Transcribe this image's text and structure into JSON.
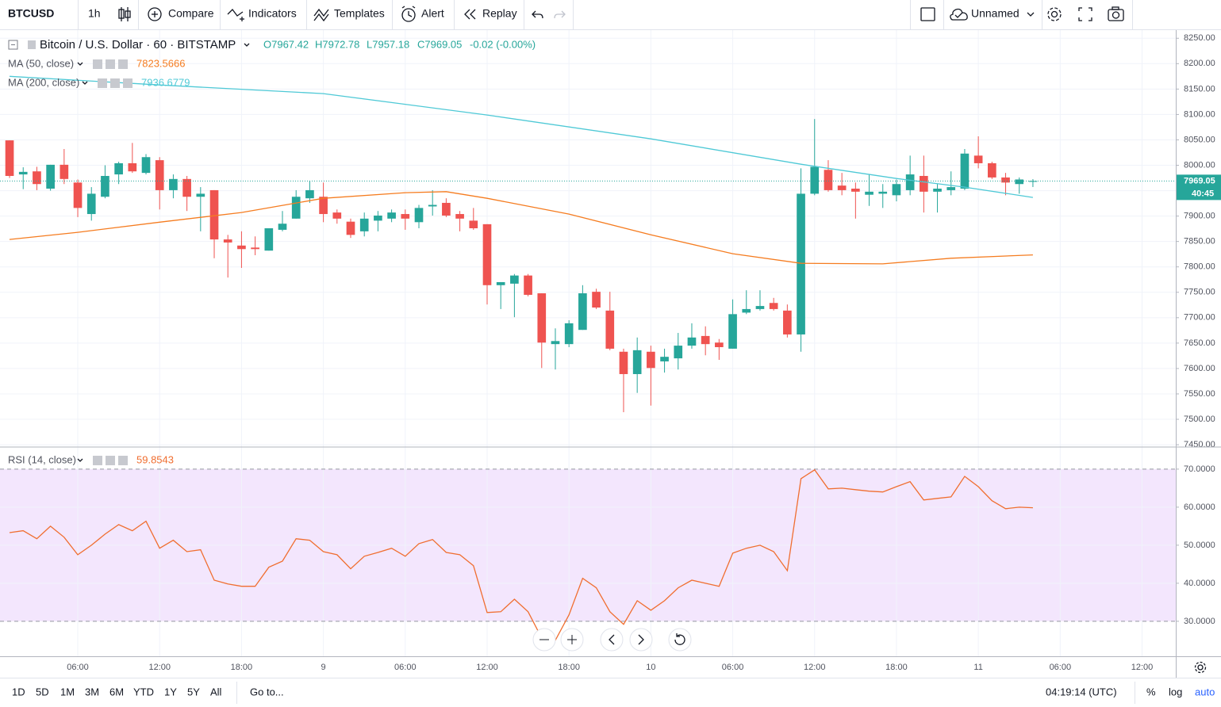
{
  "toolbar": {
    "symbol": "BTCUSD",
    "interval": "1h",
    "compare": "Compare",
    "indicators": "Indicators",
    "templates": "Templates",
    "alert": "Alert",
    "replay": "Replay",
    "layout": "Unnamed"
  },
  "bottom_bar": {
    "ranges": [
      "1D",
      "5D",
      "1M",
      "3M",
      "6M",
      "YTD",
      "1Y",
      "5Y",
      "All"
    ],
    "goto": "Go to...",
    "clock": "04:19:14 (UTC)",
    "percent": "%",
    "log": "log",
    "auto": "auto"
  },
  "chart_data": [
    {
      "type": "candlestick",
      "title": "Bitcoin / U.S. Dollar · 60 · BITSTAMP",
      "legend": {
        "open": "O7967.42",
        "high": "H7972.78",
        "low": "L7957.18",
        "close": "C7969.05",
        "change": "-0.02 (-0.00%)"
      },
      "up_color": "#26a69a",
      "down_color": "#ef5350",
      "open": [
        8049,
        7982,
        7988,
        7954,
        8001,
        7966,
        7904,
        7938,
        7982,
        8004,
        7985,
        8010,
        7951,
        7973,
        7938,
        7951,
        7854,
        7842,
        7838,
        7832,
        7873,
        7895,
        7935,
        7938,
        7907,
        7889,
        7870,
        7891,
        7895,
        7904,
        7888,
        7919,
        7926,
        7904,
        7891,
        7884,
        7764,
        7767,
        7783,
        7748,
        7648,
        7648,
        7676,
        7751,
        7714,
        7633,
        7589,
        7633,
        7614,
        7620,
        7645,
        7664,
        7651,
        7639,
        7710,
        7717,
        7729,
        7714,
        7667,
        7944,
        7991,
        7960,
        7954,
        7942,
        7944,
        7941,
        7951,
        7979,
        7948,
        7951,
        7954,
        8019,
        8004,
        7976,
        7963,
        7967.42
      ],
      "high": [
        8049,
        7996,
        7997,
        8001,
        8032,
        7972,
        7957,
        8000,
        8007,
        8044,
        8022,
        8016,
        7982,
        7979,
        7957,
        7951,
        7863,
        7870,
        7860,
        7876,
        7910,
        7951,
        7969,
        7966,
        7913,
        7895,
        7907,
        7910,
        7913,
        7913,
        7922,
        7951,
        7935,
        7910,
        7916,
        7884,
        7770,
        7786,
        7786,
        7748,
        7679,
        7695,
        7764,
        7757,
        7751,
        7639,
        7661,
        7645,
        7639,
        7670,
        7689,
        7683,
        7658,
        7736,
        7754,
        7754,
        7739,
        7726,
        7994,
        8091,
        8010,
        7985,
        7966,
        7982,
        7963,
        7972,
        8019,
        8019,
        7963,
        7988,
        8032,
        8057,
        8007,
        7985,
        7976,
        7972.78
      ],
      "low": [
        7975,
        7953,
        7951,
        7950,
        7963,
        7898,
        7891,
        7935,
        7963,
        7985,
        7982,
        7913,
        7935,
        7910,
        7870,
        7817,
        7779,
        7798,
        7823,
        7832,
        7870,
        7895,
        7926,
        7888,
        7885,
        7857,
        7860,
        7870,
        7888,
        7873,
        7876,
        7901,
        7898,
        7870,
        7873,
        7726,
        7717,
        7701,
        7742,
        7601,
        7598,
        7642,
        7676,
        7717,
        7636,
        7514,
        7552,
        7527,
        7592,
        7598,
        7639,
        7626,
        7617,
        7639,
        7707,
        7714,
        7714,
        7661,
        7633,
        7941,
        7948,
        7941,
        7895,
        7920,
        7916,
        7929,
        7941,
        7907,
        7907,
        7941,
        7951,
        7994,
        7973,
        7941,
        7944,
        7957.18
      ],
      "close": [
        7979,
        7987,
        7963,
        8001,
        7973,
        7916,
        7944,
        7979,
        8004,
        7988,
        8016,
        7951,
        7973,
        7938,
        7944,
        7854,
        7848,
        7835,
        7835,
        7876,
        7885,
        7938,
        7951,
        7904,
        7895,
        7863,
        7895,
        7901,
        7907,
        7895,
        7916,
        7922,
        7901,
        7895,
        7876,
        7764,
        7770,
        7783,
        7745,
        7651,
        7654,
        7689,
        7748,
        7720,
        7639,
        7589,
        7636,
        7601,
        7623,
        7645,
        7661,
        7648,
        7642,
        7707,
        7717,
        7723,
        7717,
        7667,
        7944,
        7997,
        7951,
        7951,
        7948,
        7948,
        7948,
        7963,
        7982,
        7948,
        7954,
        7957,
        8023,
        8004,
        7976,
        7966,
        7972,
        7969.05
      ],
      "series": [
        {
          "name": "MA (50, close)",
          "color": "#f57c20",
          "x": [
            0,
            5,
            11,
            17,
            23,
            29,
            32,
            35,
            41,
            47,
            53,
            58,
            64,
            69,
            75
          ],
          "values": [
            7854,
            7868,
            7888,
            7907,
            7935,
            7946,
            7948,
            7935,
            7904,
            7863,
            7826,
            7807,
            7806,
            7817,
            7823.5666
          ],
          "last_label": "7823.5666"
        },
        {
          "name": "MA (200, close)",
          "color": "#4fc9d6",
          "x": [
            0,
            11,
            23,
            35,
            47,
            58,
            65,
            70,
            75
          ],
          "values": [
            8175,
            8158,
            8141,
            8099,
            8052,
            8002,
            7974,
            7957,
            7936.6779
          ],
          "last_label": "7936.6779"
        }
      ],
      "last_price": {
        "value": 7969.05,
        "label": "7969.05"
      },
      "countdown": "40:45",
      "xlim": [
        -0.7,
        85.47
      ],
      "ylim": [
        7447,
        8266
      ],
      "xticks": [
        {
          "value": 5,
          "label": "06:00"
        },
        {
          "value": 11,
          "label": "12:00"
        },
        {
          "value": 17,
          "label": "18:00"
        },
        {
          "value": 23,
          "label": "9"
        },
        {
          "value": 29,
          "label": "06:00"
        },
        {
          "value": 35,
          "label": "12:00"
        },
        {
          "value": 41,
          "label": "18:00"
        },
        {
          "value": 47,
          "label": "10"
        },
        {
          "value": 53,
          "label": "06:00"
        },
        {
          "value": 59,
          "label": "12:00"
        },
        {
          "value": 65,
          "label": "18:00"
        },
        {
          "value": 71,
          "label": "11"
        },
        {
          "value": 77,
          "label": "06:00"
        },
        {
          "value": 83,
          "label": "12:00"
        }
      ],
      "yticks": [
        {
          "value": 8250,
          "label": "8250.00"
        },
        {
          "value": 8200,
          "label": "8200.00"
        },
        {
          "value": 8150,
          "label": "8150.00"
        },
        {
          "value": 8100,
          "label": "8100.00"
        },
        {
          "value": 8050,
          "label": "8050.00"
        },
        {
          "value": 8000,
          "label": "8000.00"
        },
        {
          "value": 7950,
          "label": "7950.00"
        },
        {
          "value": 7900,
          "label": "7900.00"
        },
        {
          "value": 7850,
          "label": "7850.00"
        },
        {
          "value": 7800,
          "label": "7800.00"
        },
        {
          "value": 7750,
          "label": "7750.00"
        },
        {
          "value": 7700,
          "label": "7700.00"
        },
        {
          "value": 7650,
          "label": "7650.00"
        },
        {
          "value": 7600,
          "label": "7600.00"
        },
        {
          "value": 7550,
          "label": "7550.00"
        },
        {
          "value": 7500,
          "label": "7500.00"
        },
        {
          "value": 7450,
          "label": "7450.00"
        }
      ],
      "grid": true
    },
    {
      "type": "line",
      "title": "RSI (14, close)",
      "series": [
        {
          "name": "RSI (14, close)",
          "color": "#f06e30",
          "values": [
            53.3,
            53.8,
            51.7,
            55,
            52.1,
            47.5,
            50,
            52.9,
            55.4,
            53.8,
            56.3,
            49.2,
            51.3,
            48.3,
            48.8,
            40.8,
            39.8,
            39.2,
            39.2,
            44.2,
            45.8,
            51.7,
            51.3,
            48.3,
            47.5,
            43.8,
            47.1,
            48.1,
            49.2,
            47.1,
            50.4,
            51.5,
            48.1,
            47.5,
            44.6,
            32.3,
            32.5,
            35.8,
            32.5,
            25.6,
            25,
            31.7,
            41.3,
            38.8,
            32.5,
            29.2,
            35.4,
            32.9,
            35.4,
            38.8,
            40.8,
            40,
            39.2,
            47.9,
            49.2,
            50,
            48.3,
            43.3,
            67.5,
            69.8,
            64.8,
            65,
            64.6,
            64.2,
            64,
            65.4,
            66.7,
            61.9,
            62.3,
            62.7,
            68.1,
            65.4,
            61.7,
            59.6,
            60,
            59.8543
          ],
          "last_label": "59.8543"
        }
      ],
      "band": [
        30,
        70
      ],
      "band_color": "#f3e6fd",
      "ylim": [
        20.8,
        75.6
      ],
      "yticks": [
        {
          "value": 70,
          "label": "70.0000"
        },
        {
          "value": 60,
          "label": "60.0000"
        },
        {
          "value": 50,
          "label": "50.0000"
        },
        {
          "value": 40,
          "label": "40.0000"
        },
        {
          "value": 30,
          "label": "30.0000"
        }
      ],
      "grid": true
    }
  ]
}
